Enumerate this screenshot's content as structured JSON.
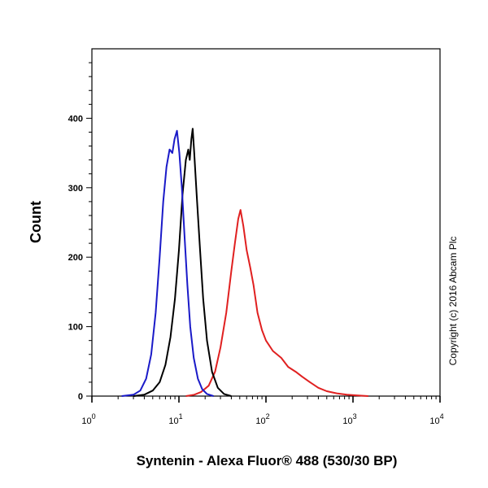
{
  "chart_data": {
    "type": "line",
    "xlabel": "Syntenin - Alexa Fluor® 488 (530/30 BP)",
    "ylabel": "Count",
    "x_scale": "log",
    "xlim": [
      1,
      10000
    ],
    "ylim": [
      0,
      500
    ],
    "x_ticks": [
      {
        "base": "10",
        "exp": "0",
        "value": 1
      },
      {
        "base": "10",
        "exp": "1",
        "value": 10
      },
      {
        "base": "10",
        "exp": "2",
        "value": 100
      },
      {
        "base": "10",
        "exp": "3",
        "value": 1000
      },
      {
        "base": "10",
        "exp": "4",
        "value": 10000
      }
    ],
    "y_ticks": [
      "0",
      "100",
      "200",
      "300",
      "400"
    ],
    "y_tick_values": [
      0,
      100,
      200,
      300,
      400
    ],
    "grid": false,
    "legend": "none",
    "annotation": "Copyright (c) 2016 Abcam Plc",
    "series": [
      {
        "color": "#1a1ac8",
        "points": [
          [
            2.2,
            0
          ],
          [
            3.0,
            2
          ],
          [
            3.6,
            8
          ],
          [
            4.2,
            25
          ],
          [
            4.8,
            60
          ],
          [
            5.4,
            120
          ],
          [
            6.0,
            200
          ],
          [
            6.6,
            280
          ],
          [
            7.2,
            330
          ],
          [
            7.8,
            355
          ],
          [
            8.4,
            350
          ],
          [
            8.9,
            370
          ],
          [
            9.5,
            382
          ],
          [
            10.1,
            350
          ],
          [
            10.8,
            300
          ],
          [
            11.6,
            230
          ],
          [
            12.5,
            160
          ],
          [
            13.5,
            100
          ],
          [
            14.8,
            55
          ],
          [
            16.5,
            25
          ],
          [
            18.5,
            10
          ],
          [
            21,
            3
          ],
          [
            25,
            0
          ]
        ]
      },
      {
        "color": "#000000",
        "points": [
          [
            3.0,
            0
          ],
          [
            4.0,
            2
          ],
          [
            5.0,
            8
          ],
          [
            6.0,
            20
          ],
          [
            7.0,
            45
          ],
          [
            8.0,
            85
          ],
          [
            9.0,
            140
          ],
          [
            10.0,
            210
          ],
          [
            11.0,
            290
          ],
          [
            12.0,
            340
          ],
          [
            12.8,
            355
          ],
          [
            13.3,
            340
          ],
          [
            13.9,
            370
          ],
          [
            14.4,
            385
          ],
          [
            15.0,
            350
          ],
          [
            16.0,
            290
          ],
          [
            17.5,
            210
          ],
          [
            19.0,
            140
          ],
          [
            21.0,
            80
          ],
          [
            24.0,
            35
          ],
          [
            28,
            12
          ],
          [
            33,
            3
          ],
          [
            40,
            0
          ]
        ]
      },
      {
        "color": "#e02020",
        "points": [
          [
            12,
            0
          ],
          [
            15,
            2
          ],
          [
            18,
            6
          ],
          [
            22,
            15
          ],
          [
            26,
            35
          ],
          [
            30,
            70
          ],
          [
            35,
            120
          ],
          [
            40,
            180
          ],
          [
            44,
            220
          ],
          [
            48,
            255
          ],
          [
            51,
            268
          ],
          [
            55,
            245
          ],
          [
            60,
            210
          ],
          [
            66,
            185
          ],
          [
            72,
            160
          ],
          [
            80,
            120
          ],
          [
            90,
            95
          ],
          [
            100,
            80
          ],
          [
            120,
            65
          ],
          [
            150,
            55
          ],
          [
            180,
            42
          ],
          [
            220,
            35
          ],
          [
            260,
            28
          ],
          [
            320,
            20
          ],
          [
            400,
            12
          ],
          [
            500,
            7
          ],
          [
            650,
            4
          ],
          [
            850,
            2
          ],
          [
            1100,
            1
          ],
          [
            1500,
            0
          ]
        ]
      }
    ]
  }
}
